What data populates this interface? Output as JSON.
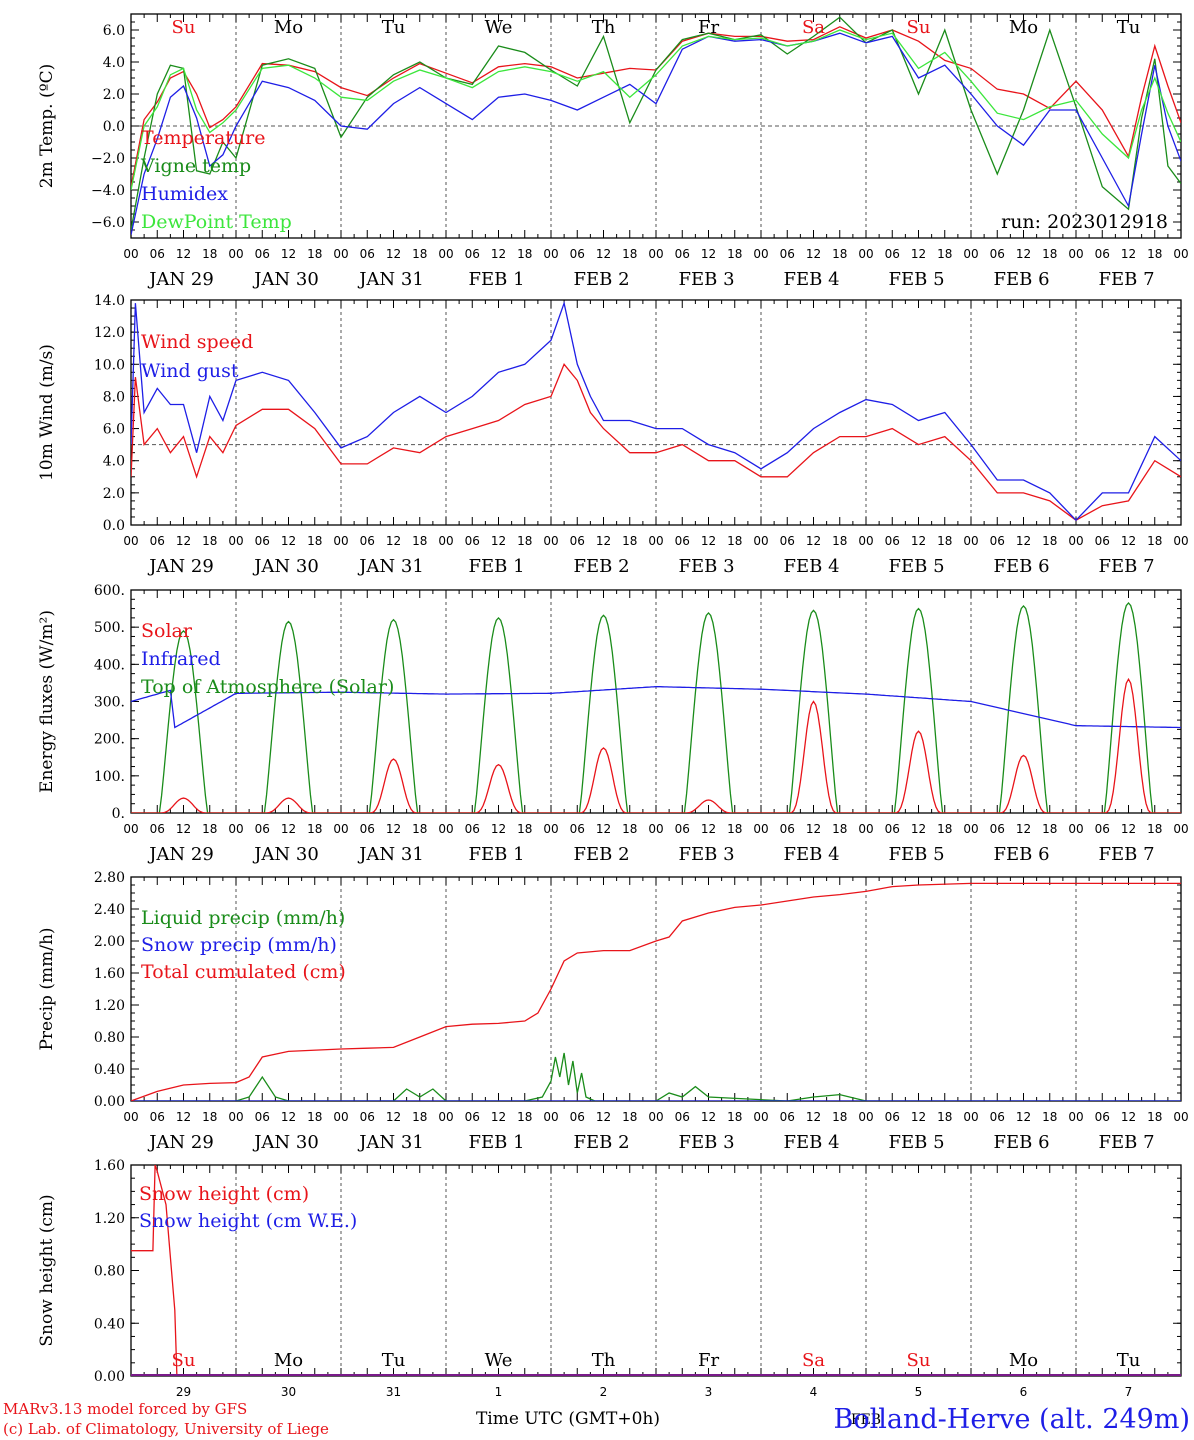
{
  "colors": {
    "red": "#e8141a",
    "green": "#1a8c1a",
    "blue": "#1e1ee6",
    "lightgreen": "#3ce63c"
  },
  "day_names": [
    "Su",
    "Mo",
    "Tu",
    "We",
    "Th",
    "Fr",
    "Sa",
    "Su",
    "Mo",
    "Tu"
  ],
  "day_name_colors": [
    "red",
    "black",
    "black",
    "black",
    "black",
    "black",
    "red",
    "red",
    "black",
    "black"
  ],
  "date_labels": [
    "JAN 29",
    "JAN 30",
    "JAN 31",
    "FEB  1",
    "FEB  2",
    "FEB  3",
    "FEB  4",
    "FEB  5",
    "FEB  6",
    "FEB  7"
  ],
  "hour_labels": [
    "00",
    "06",
    "12",
    "18"
  ],
  "hour_label_end": "00",
  "bottom_day_numbers": [
    "29",
    "30",
    "31",
    "1",
    "2",
    "3",
    "4",
    "5",
    "6",
    "7"
  ],
  "bottom_month_label": "FEB",
  "footer": {
    "model": "MARv3.13 model forced by GFS",
    "lab": "(c) Lab. of Climatology, University of Liege",
    "xaxis_title": "Time UTC (GMT+0h)",
    "station": "Bolland-Herve (alt. 249m)"
  },
  "chart_data": [
    {
      "type": "line",
      "id": "temp",
      "ylabel": "2m Temp. (ºC)",
      "ylim": [
        -7,
        7
      ],
      "yticks": [
        "6.0",
        "4.0",
        "2.0",
        "0.0",
        "−2.0",
        "−4.0",
        "−6.0"
      ],
      "ytick_values": [
        6,
        4,
        2,
        0,
        -2,
        -4,
        -6
      ],
      "reference_line": 0,
      "x_range_hours": [
        0,
        240
      ],
      "annotation": "run: 2023012918",
      "series": [
        {
          "name": "Temperature",
          "color": "red",
          "x": [
            0,
            3,
            6,
            9,
            12,
            15,
            18,
            21,
            24,
            30,
            36,
            42,
            48,
            54,
            60,
            66,
            72,
            78,
            84,
            90,
            96,
            102,
            108,
            114,
            120,
            126,
            132,
            138,
            144,
            150,
            156,
            162,
            168,
            174,
            180,
            186,
            192,
            198,
            204,
            210,
            216,
            222,
            228,
            231,
            234,
            237,
            240
          ],
          "values": [
            -3.8,
            0.4,
            1.5,
            3.0,
            3.4,
            2.0,
            -0.1,
            0.4,
            1.2,
            3.9,
            3.8,
            3.4,
            2.4,
            1.9,
            3.0,
            3.9,
            3.3,
            2.7,
            3.7,
            3.9,
            3.7,
            3.0,
            3.3,
            3.6,
            3.5,
            5.3,
            5.8,
            5.6,
            5.6,
            5.3,
            5.4,
            6.2,
            5.5,
            6.0,
            5.3,
            4.1,
            3.6,
            2.3,
            2.0,
            1.1,
            2.8,
            1.0,
            -1.9,
            1.8,
            5.0,
            2.5,
            0.2
          ]
        },
        {
          "name": "Vigne temp",
          "color": "green",
          "x": [
            0,
            3,
            6,
            9,
            12,
            15,
            18,
            21,
            24,
            30,
            36,
            42,
            48,
            54,
            60,
            66,
            72,
            78,
            84,
            90,
            96,
            102,
            108,
            114,
            120,
            126,
            132,
            138,
            144,
            150,
            156,
            162,
            168,
            174,
            180,
            186,
            192,
            198,
            204,
            210,
            216,
            222,
            228,
            231,
            234,
            237,
            240
          ],
          "values": [
            -6.5,
            -2.0,
            2.0,
            3.8,
            3.6,
            -2.8,
            -3.0,
            -1.0,
            -2.0,
            3.8,
            4.2,
            3.6,
            -0.7,
            1.8,
            3.2,
            4.0,
            3.0,
            2.6,
            5.0,
            4.6,
            3.5,
            2.5,
            5.6,
            0.2,
            3.5,
            5.4,
            5.8,
            5.4,
            5.7,
            4.5,
            5.6,
            6.8,
            5.2,
            6.0,
            2.0,
            6.0,
            1.0,
            -3.0,
            1.0,
            6.0,
            1.2,
            -3.8,
            -5.2,
            0.5,
            4.2,
            -2.5,
            -3.6
          ]
        },
        {
          "name": "Humidex",
          "color": "blue",
          "x": [
            0,
            3,
            6,
            9,
            12,
            15,
            18,
            21,
            24,
            30,
            36,
            42,
            48,
            54,
            60,
            66,
            72,
            78,
            84,
            90,
            96,
            102,
            108,
            114,
            120,
            126,
            132,
            138,
            144,
            150,
            156,
            162,
            168,
            174,
            180,
            186,
            192,
            198,
            204,
            210,
            216,
            222,
            228,
            231,
            234,
            237,
            240
          ],
          "values": [
            -6.8,
            -3.0,
            -0.8,
            1.8,
            2.5,
            0.5,
            -2.5,
            -1.8,
            0.0,
            2.8,
            2.4,
            1.6,
            0.0,
            -0.2,
            1.4,
            2.4,
            1.4,
            0.4,
            1.8,
            2.0,
            1.6,
            1.0,
            1.8,
            2.6,
            1.4,
            4.8,
            5.6,
            5.3,
            5.4,
            5.0,
            5.3,
            5.8,
            5.2,
            5.6,
            3.0,
            3.8,
            2.0,
            0.0,
            -1.2,
            1.0,
            1.0,
            -2.0,
            -5.0,
            -0.5,
            3.8,
            0.0,
            -2.2
          ]
        },
        {
          "name": "DewPoint Temp",
          "color": "lightgreen",
          "x": [
            0,
            3,
            6,
            9,
            12,
            15,
            18,
            21,
            24,
            30,
            36,
            42,
            48,
            54,
            60,
            66,
            72,
            78,
            84,
            90,
            96,
            102,
            108,
            114,
            120,
            126,
            132,
            138,
            144,
            150,
            156,
            162,
            168,
            174,
            180,
            186,
            192,
            198,
            204,
            210,
            216,
            222,
            228,
            231,
            234,
            237,
            240
          ],
          "values": [
            -4.0,
            0.0,
            1.2,
            3.2,
            3.6,
            1.0,
            -0.4,
            0.2,
            1.0,
            3.6,
            3.8,
            3.0,
            1.8,
            1.6,
            2.8,
            3.5,
            3.0,
            2.4,
            3.4,
            3.7,
            3.4,
            2.8,
            3.4,
            1.8,
            3.2,
            5.0,
            5.6,
            5.4,
            5.5,
            5.0,
            5.3,
            6.0,
            5.4,
            5.8,
            3.6,
            4.6,
            2.8,
            0.8,
            0.4,
            1.2,
            1.6,
            -0.5,
            -2.0,
            1.0,
            3.0,
            0.8,
            -1.0
          ]
        }
      ]
    },
    {
      "type": "line",
      "id": "wind",
      "ylabel": "10m Wind (m/s)",
      "ylim": [
        0,
        14
      ],
      "yticks": [
        "14.0",
        "12.0",
        "10.0",
        "8.0",
        "6.0",
        "4.0",
        "2.0",
        "0.0"
      ],
      "ytick_values": [
        14,
        12,
        10,
        8,
        6,
        4,
        2,
        0
      ],
      "reference_line": 5,
      "x_range_hours": [
        0,
        240
      ],
      "series": [
        {
          "name": "Wind speed",
          "color": "red",
          "x": [
            0,
            1,
            3,
            6,
            9,
            12,
            15,
            18,
            21,
            24,
            30,
            36,
            42,
            48,
            54,
            60,
            66,
            72,
            78,
            84,
            90,
            96,
            99,
            102,
            105,
            108,
            114,
            120,
            126,
            132,
            138,
            144,
            150,
            156,
            162,
            168,
            174,
            180,
            186,
            192,
            198,
            204,
            210,
            216,
            222,
            228,
            234,
            240
          ],
          "values": [
            3.0,
            9.2,
            5.0,
            6.0,
            4.5,
            5.5,
            3.0,
            5.5,
            4.5,
            6.2,
            7.2,
            7.2,
            6.0,
            3.8,
            3.8,
            4.8,
            4.5,
            5.5,
            6.0,
            6.5,
            7.5,
            8.0,
            10.0,
            9.0,
            7.0,
            6.0,
            4.5,
            4.5,
            5.0,
            4.0,
            4.0,
            3.0,
            3.0,
            4.5,
            5.5,
            5.5,
            6.0,
            5.0,
            5.5,
            4.0,
            2.0,
            2.0,
            1.5,
            0.3,
            1.2,
            1.5,
            4.0,
            3.0
          ]
        },
        {
          "name": "Wind gust",
          "color": "blue",
          "x": [
            0,
            1,
            3,
            6,
            9,
            12,
            15,
            18,
            21,
            24,
            30,
            36,
            42,
            48,
            54,
            60,
            66,
            72,
            78,
            84,
            90,
            96,
            99,
            102,
            105,
            108,
            114,
            120,
            126,
            132,
            138,
            144,
            150,
            156,
            162,
            168,
            174,
            180,
            186,
            192,
            198,
            204,
            210,
            216,
            222,
            228,
            234,
            240
          ],
          "values": [
            5.0,
            13.8,
            7.0,
            8.5,
            7.5,
            7.5,
            4.5,
            8.0,
            6.5,
            9.0,
            9.5,
            9.0,
            7.0,
            4.8,
            5.5,
            7.0,
            8.0,
            7.0,
            8.0,
            9.5,
            10.0,
            11.5,
            13.8,
            10.0,
            8.0,
            6.5,
            6.5,
            6.0,
            6.0,
            5.0,
            4.5,
            3.5,
            4.5,
            6.0,
            7.0,
            7.8,
            7.5,
            6.5,
            7.0,
            5.0,
            2.8,
            2.8,
            2.0,
            0.3,
            2.0,
            2.0,
            5.5,
            4.0
          ]
        }
      ]
    },
    {
      "type": "line",
      "id": "energy",
      "ylabel": "Energy fluxes (W/m²)",
      "ylim": [
        0,
        600
      ],
      "yticks": [
        "600.",
        "500.",
        "400.",
        "300.",
        "200.",
        "100.",
        "0."
      ],
      "ytick_values": [
        600,
        500,
        400,
        300,
        200,
        100,
        0
      ],
      "x_range_hours": [
        0,
        240
      ],
      "toa_peaks": [
        490,
        515,
        520,
        525,
        532,
        538,
        545,
        550,
        557,
        565
      ],
      "solar_peaks": [
        40,
        40,
        145,
        130,
        175,
        35,
        300,
        220,
        155,
        360
      ],
      "infrared_levels": [
        330,
        322,
        325,
        320,
        322,
        330,
        333,
        320,
        275,
        235
      ],
      "series": [
        {
          "name": "Solar",
          "color": "red"
        },
        {
          "name": "Infrared",
          "color": "blue"
        },
        {
          "name": "Top of Atmosphere (Solar)",
          "color": "green"
        }
      ]
    },
    {
      "type": "line",
      "id": "precip",
      "ylabel": "Precip (mm/h)",
      "ylim": [
        0,
        2.8
      ],
      "yticks": [
        "2.80",
        "2.40",
        "2.00",
        "1.60",
        "1.20",
        "0.80",
        "0.40",
        "0.00"
      ],
      "ytick_values": [
        2.8,
        2.4,
        2.0,
        1.6,
        1.2,
        0.8,
        0.4,
        0.0
      ],
      "x_range_hours": [
        0,
        240
      ],
      "series": [
        {
          "name": "Liquid precip (mm/h)",
          "color": "green",
          "x": [
            0,
            24,
            27,
            30,
            33,
            36,
            60,
            63,
            66,
            69,
            72,
            90,
            94,
            96,
            97,
            98,
            99,
            100,
            101,
            102,
            103,
            104,
            106,
            120,
            123,
            126,
            129,
            132,
            150,
            156,
            162,
            168,
            240
          ],
          "values": [
            0,
            0,
            0.05,
            0.3,
            0.05,
            0,
            0,
            0.15,
            0.05,
            0.15,
            0,
            0,
            0.05,
            0.25,
            0.55,
            0.3,
            0.6,
            0.2,
            0.5,
            0.1,
            0.35,
            0.05,
            0,
            0,
            0.1,
            0.05,
            0.18,
            0.05,
            0,
            0.05,
            0.08,
            0,
            0
          ]
        },
        {
          "name": "Snow precip (mm/h)",
          "color": "blue",
          "x": [
            0,
            240
          ],
          "values": [
            0,
            0
          ]
        },
        {
          "name": "Total cumulated (cm)",
          "color": "red",
          "x": [
            0,
            6,
            12,
            18,
            24,
            27,
            30,
            36,
            48,
            54,
            60,
            66,
            72,
            78,
            84,
            90,
            93,
            96,
            99,
            102,
            108,
            114,
            120,
            123,
            126,
            132,
            138,
            144,
            150,
            156,
            162,
            168,
            174,
            180,
            192,
            204,
            216,
            228,
            240
          ],
          "values": [
            0,
            0.12,
            0.2,
            0.22,
            0.23,
            0.3,
            0.55,
            0.62,
            0.65,
            0.66,
            0.67,
            0.8,
            0.93,
            0.96,
            0.97,
            1.0,
            1.1,
            1.4,
            1.75,
            1.85,
            1.88,
            1.88,
            2.0,
            2.05,
            2.25,
            2.35,
            2.42,
            2.45,
            2.5,
            2.55,
            2.58,
            2.62,
            2.68,
            2.7,
            2.72,
            2.72,
            2.72,
            2.72,
            2.72
          ]
        }
      ]
    },
    {
      "type": "line",
      "id": "snow",
      "ylabel": "Snow height (cm)",
      "ylim": [
        0,
        1.6
      ],
      "yticks": [
        "1.60",
        "1.20",
        "0.80",
        "0.40",
        "0.00"
      ],
      "ytick_values": [
        1.6,
        1.2,
        0.8,
        0.4,
        0.0
      ],
      "x_range_hours": [
        0,
        240
      ],
      "series": [
        {
          "name": "Snow height (cm)",
          "color": "red",
          "x": [
            0,
            3,
            5,
            5.5,
            6,
            8,
            10,
            10.5,
            240
          ],
          "values": [
            0.95,
            0.95,
            0.95,
            1.6,
            1.55,
            1.3,
            0.5,
            0,
            0
          ]
        },
        {
          "name": "Snow height (cm W.E.)",
          "color": "blue",
          "x": [
            0,
            240
          ],
          "values": [
            0,
            0
          ]
        }
      ]
    }
  ]
}
